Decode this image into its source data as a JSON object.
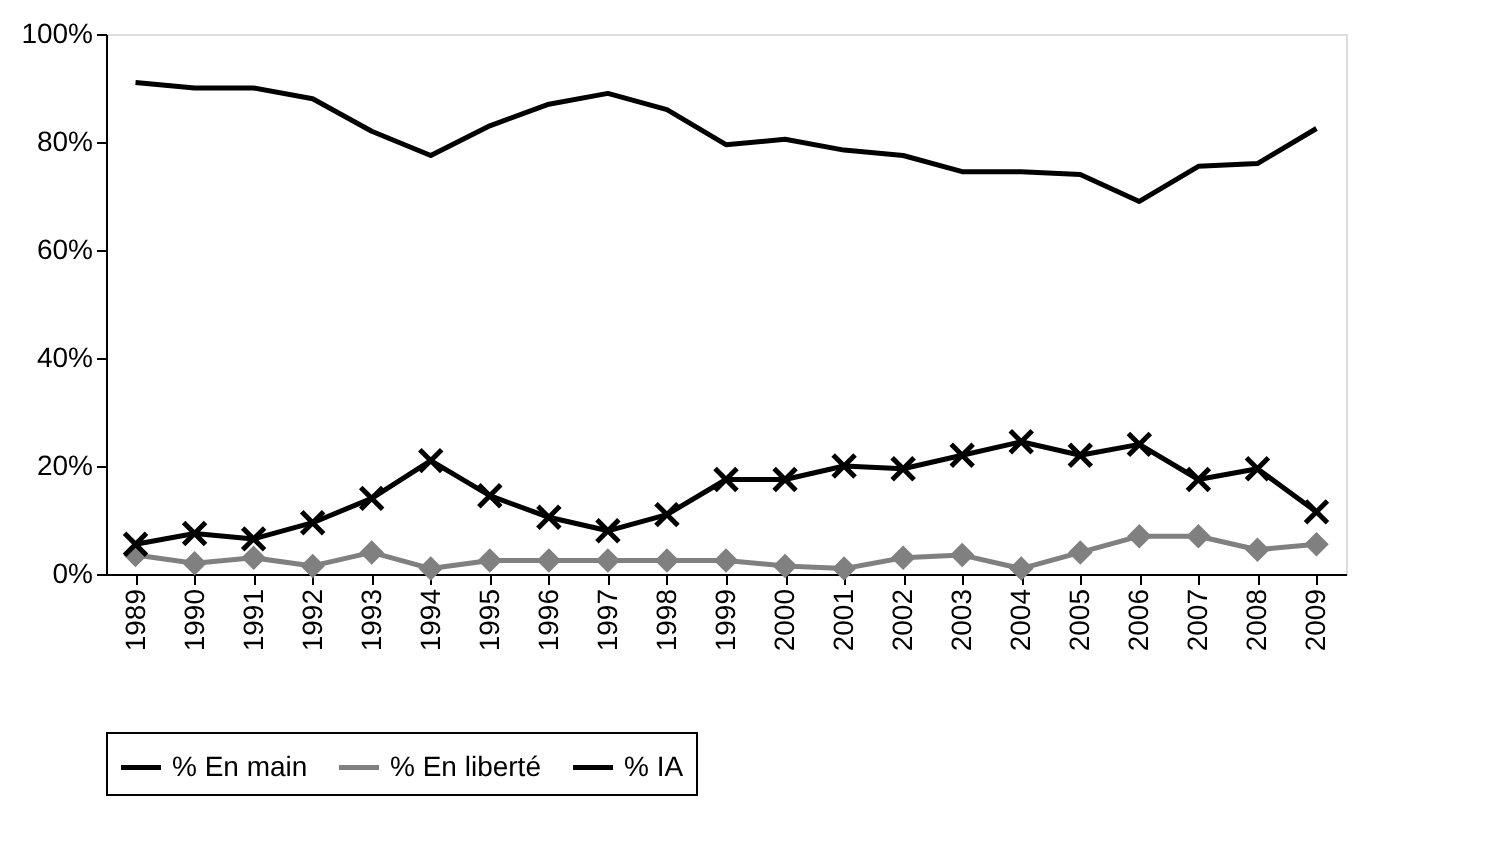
{
  "chart_data": {
    "type": "line",
    "categories": [
      "1989",
      "1990",
      "1991",
      "1992",
      "1993",
      "1994",
      "1995",
      "1996",
      "1997",
      "1998",
      "1999",
      "2000",
      "2001",
      "2002",
      "2003",
      "2004",
      "2005",
      "2006",
      "2007",
      "2008",
      "2009"
    ],
    "series": [
      {
        "name": "% En main",
        "color": "#000000",
        "marker": "none",
        "values": [
          91,
          90,
          90,
          88,
          82,
          77.5,
          83,
          87,
          89,
          86,
          79.5,
          80.5,
          78.5,
          77.5,
          74.5,
          74.5,
          74,
          69,
          75.5,
          76,
          82.5
        ]
      },
      {
        "name": "% En liberté",
        "color": "#808080",
        "marker": "diamond",
        "values": [
          3.5,
          2,
          3,
          1.5,
          4,
          1,
          2.5,
          2.5,
          2.5,
          2.5,
          2.5,
          1.5,
          1,
          3,
          3.5,
          1,
          4,
          7,
          7,
          4.5,
          5.5
        ]
      },
      {
        "name": "% IA",
        "color": "#000000",
        "marker": "cross",
        "values": [
          5.5,
          7.5,
          6.5,
          9.5,
          14,
          21,
          14.5,
          10.5,
          8,
          11,
          17.5,
          17.5,
          20,
          19.5,
          22,
          24.5,
          22,
          24,
          17.5,
          19.5,
          11.5
        ]
      }
    ],
    "ylim": [
      0,
      100
    ],
    "yticks": [
      {
        "value": 0,
        "label": "0%"
      },
      {
        "value": 20,
        "label": "20%"
      },
      {
        "value": 40,
        "label": "40%"
      },
      {
        "value": 60,
        "label": "60%"
      },
      {
        "value": 80,
        "label": "80%"
      },
      {
        "value": 100,
        "label": "100%"
      }
    ],
    "grid": false,
    "legend": "bottom"
  }
}
